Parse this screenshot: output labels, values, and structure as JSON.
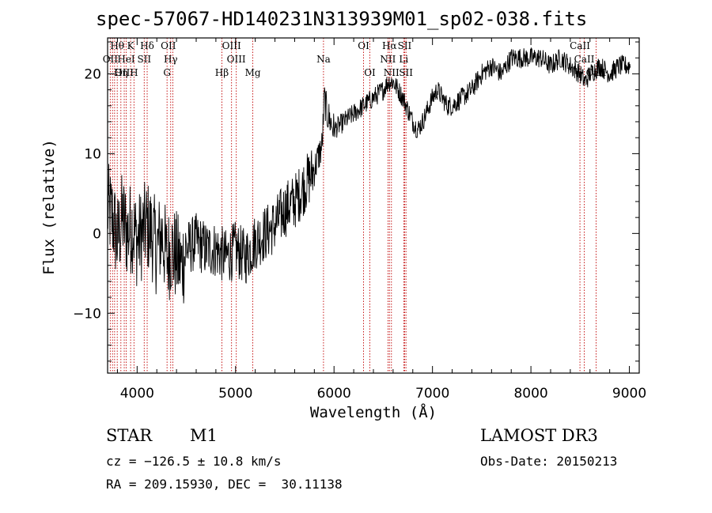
{
  "chart_data": {
    "type": "line",
    "title": "spec-57067-HD140231N313939M01_sp02-038.fits",
    "xlabel": "Wavelength (Å)",
    "ylabel": "Flux (relative)",
    "xlim": [
      3700,
      9100
    ],
    "ylim": [
      -17.5,
      24.5
    ],
    "xticks": [
      4000,
      5000,
      6000,
      7000,
      8000,
      9000
    ],
    "yticks": [
      -10,
      0,
      10,
      20
    ],
    "grid": false,
    "legend": "none",
    "series": [
      {
        "x": [
          3700,
          3750,
          3800,
          3850,
          3900,
          3950,
          4000,
          4050,
          4100,
          4150,
          4200,
          4250,
          4300,
          4350,
          4400,
          4450,
          4500,
          4600,
          4700,
          4800,
          4900,
          5000,
          5100,
          5200,
          5300,
          5400,
          5500,
          5600,
          5700,
          5750,
          5800,
          5850,
          5880,
          5900,
          5930,
          6000,
          6100,
          6200,
          6300,
          6400,
          6500,
          6550,
          6600,
          6700,
          6800,
          6850,
          6900,
          7000,
          7050,
          7100,
          7150,
          7200,
          7300,
          7400,
          7500,
          7600,
          7700,
          7800,
          7900,
          8000,
          8100,
          8200,
          8300,
          8400,
          8500,
          8550,
          8600,
          8700,
          8800,
          8900,
          9000
        ],
        "y": [
          3,
          2,
          -1,
          2,
          0,
          1,
          -1,
          0,
          1,
          0,
          -2,
          0,
          -3,
          -2,
          -3,
          -4,
          -2,
          -1,
          -2,
          -2,
          -3,
          -2,
          -3,
          -1,
          0,
          1,
          3,
          4,
          6,
          7,
          8,
          10,
          11,
          17,
          15,
          13,
          14,
          15,
          16,
          17,
          18,
          19,
          19,
          17,
          14,
          13,
          14,
          17,
          18,
          17,
          16,
          16,
          17,
          18,
          20,
          21,
          20,
          22,
          22,
          22,
          22,
          21,
          22,
          21,
          20,
          19,
          20,
          21,
          20,
          21,
          21
        ]
      }
    ],
    "line_labels": [
      {
        "text": "Hθ",
        "wavelength": 3798
      },
      {
        "text": "K",
        "wavelength": 3934
      },
      {
        "text": "Hδ",
        "wavelength": 4102
      },
      {
        "text": "OII",
        "wavelength": 4317
      },
      {
        "text": "OIII",
        "wavelength": 4959
      },
      {
        "text": "OI",
        "wavelength": 6300
      },
      {
        "text": "Hα",
        "wavelength": 6563
      },
      {
        "text": "SII",
        "wavelength": 6717
      },
      {
        "text": "CaII",
        "wavelength": 8498
      },
      {
        "text": "OII",
        "wavelength": 3727
      },
      {
        "text": "HeI",
        "wavelength": 3889
      },
      {
        "text": "SII",
        "wavelength": 4072
      },
      {
        "text": "Hγ",
        "wavelength": 4341
      },
      {
        "text": "OIII",
        "wavelength": 5007
      },
      {
        "text": "Na",
        "wavelength": 5893
      },
      {
        "text": "NII",
        "wavelength": 6548
      },
      {
        "text": "Li",
        "wavelength": 6708
      },
      {
        "text": "CaII",
        "wavelength": 8542
      },
      {
        "text": "OIII",
        "wavelength": 3869
      },
      {
        "text": "Hη",
        "wavelength": 3835
      },
      {
        "text": "H",
        "wavelength": 3968
      },
      {
        "text": "G",
        "wavelength": 4304
      },
      {
        "text": "Hβ",
        "wavelength": 4861
      },
      {
        "text": "Mg",
        "wavelength": 5175
      },
      {
        "text": "OI",
        "wavelength": 6364
      },
      {
        "text": "NII",
        "wavelength": 6583
      },
      {
        "text": "SII",
        "wavelength": 6731
      },
      {
        "text": "CaII",
        "wavelength": 8662
      }
    ],
    "marker_wavelengths": [
      3727,
      3750,
      3771,
      3798,
      3835,
      3869,
      3889,
      3934,
      3968,
      4072,
      4102,
      4304,
      4341,
      4363,
      4861,
      4959,
      5007,
      5175,
      5893,
      6300,
      6364,
      6548,
      6563,
      6583,
      6708,
      6717,
      6731,
      8498,
      8542,
      8662
    ]
  },
  "info": {
    "object_class": "STAR",
    "subclass": "M1",
    "survey": "LAMOST DR3",
    "cz": "cz = −126.5 ± 10.8 km/s",
    "obs_date": "Obs-Date: 20150213",
    "coords": "RA = 209.15930, DEC =  30.11138"
  }
}
